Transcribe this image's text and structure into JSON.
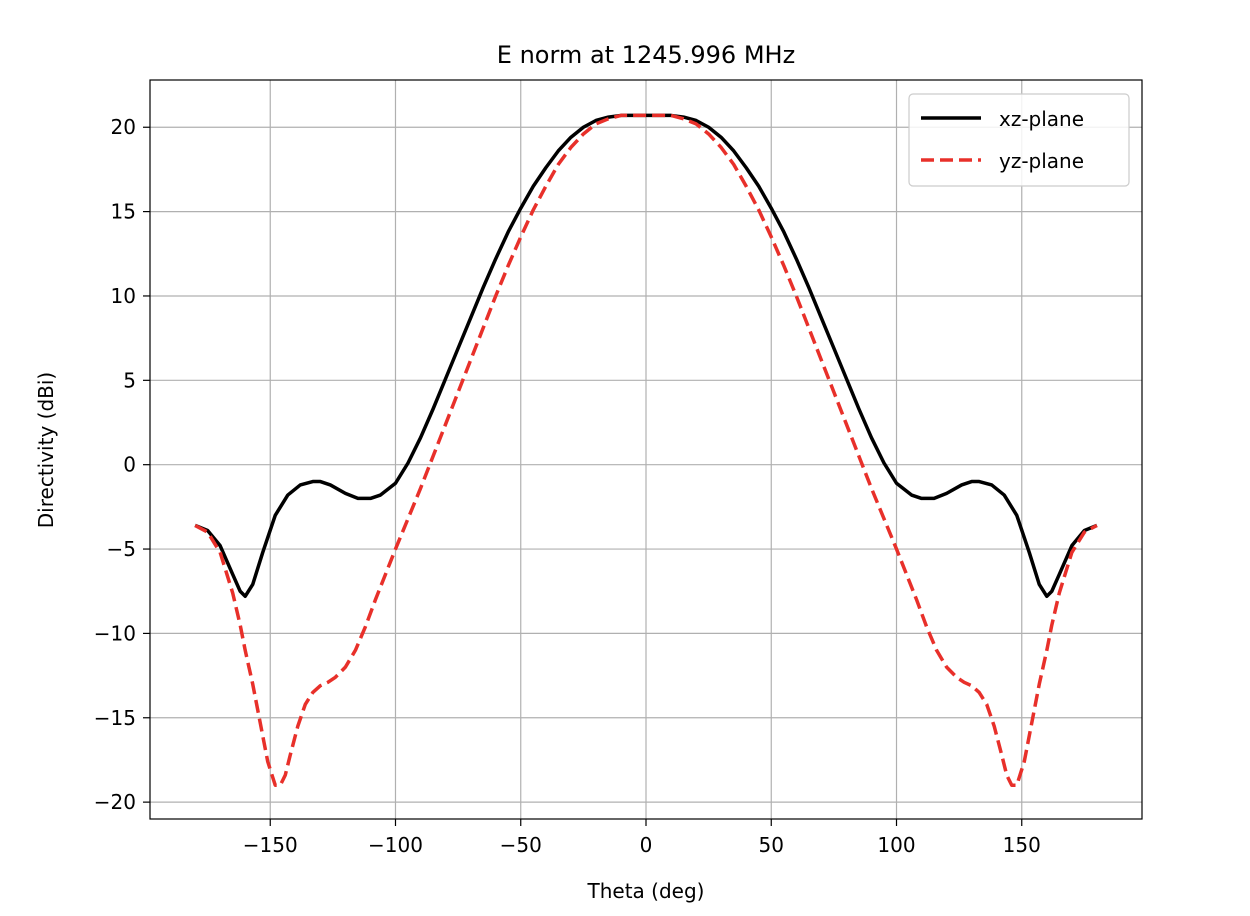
{
  "chart_data": {
    "type": "line",
    "title": "E norm at 1245.996 MHz",
    "xlabel": "Theta (deg)",
    "ylabel": "Directivity (dBi)",
    "xlim": [
      -198,
      198
    ],
    "ylim": [
      -21,
      22.8
    ],
    "xticks": [
      -150,
      -100,
      -50,
      0,
      50,
      100,
      150
    ],
    "yticks": [
      -20,
      -15,
      -10,
      -5,
      0,
      5,
      10,
      15,
      20
    ],
    "xtick_labels": [
      "−150",
      "−100",
      "−50",
      "0",
      "50",
      "100",
      "150"
    ],
    "ytick_labels": [
      "−20",
      "−15",
      "−10",
      "−5",
      "0",
      "5",
      "10",
      "15",
      "20"
    ],
    "grid": true,
    "legend_position": "top-right",
    "series": [
      {
        "name": "xz-plane",
        "color": "#000000",
        "style": "solid",
        "x": [
          -180,
          -175,
          -170,
          -165,
          -162,
          -160,
          -157,
          -153,
          -148,
          -143,
          -138,
          -133,
          -130,
          -126,
          -120,
          -115,
          -110,
          -106,
          -100,
          -95,
          -90,
          -85,
          -80,
          -75,
          -70,
          -65,
          -60,
          -55,
          -50,
          -45,
          -40,
          -35,
          -30,
          -25,
          -20,
          -15,
          -10,
          -5,
          0,
          5,
          10,
          15,
          20,
          25,
          30,
          35,
          40,
          45,
          50,
          55,
          60,
          65,
          70,
          75,
          80,
          85,
          90,
          95,
          100,
          106,
          110,
          115,
          120,
          126,
          130,
          133,
          138,
          143,
          148,
          153,
          157,
          160,
          162,
          165,
          170,
          175,
          180
        ],
        "y": [
          -3.6,
          -3.9,
          -4.8,
          -6.5,
          -7.5,
          -7.8,
          -7.1,
          -5.2,
          -3.0,
          -1.8,
          -1.2,
          -1.0,
          -1.0,
          -1.2,
          -1.7,
          -2.0,
          -2.0,
          -1.8,
          -1.1,
          0.1,
          1.6,
          3.3,
          5.1,
          6.9,
          8.7,
          10.5,
          12.2,
          13.8,
          15.2,
          16.5,
          17.6,
          18.6,
          19.4,
          20.0,
          20.4,
          20.6,
          20.7,
          20.7,
          20.7,
          20.7,
          20.7,
          20.6,
          20.4,
          20.0,
          19.4,
          18.6,
          17.6,
          16.5,
          15.2,
          13.8,
          12.2,
          10.5,
          8.7,
          6.9,
          5.1,
          3.3,
          1.6,
          0.1,
          -1.1,
          -1.8,
          -2.0,
          -2.0,
          -1.7,
          -1.2,
          -1.0,
          -1.0,
          -1.2,
          -1.8,
          -3.0,
          -5.2,
          -7.1,
          -7.8,
          -7.5,
          -6.5,
          -4.8,
          -3.9,
          -3.6
        ]
      },
      {
        "name": "yz-plane",
        "color": "#e8302a",
        "style": "dashed",
        "x": [
          -180,
          -175,
          -170,
          -165,
          -162,
          -160,
          -157,
          -154,
          -151,
          -148,
          -146,
          -144,
          -142,
          -139,
          -136,
          -133,
          -130,
          -127,
          -124,
          -120,
          -116,
          -112,
          -108,
          -104,
          -100,
          -95,
          -90,
          -85,
          -80,
          -75,
          -70,
          -65,
          -60,
          -55,
          -50,
          -45,
          -40,
          -35,
          -30,
          -25,
          -20,
          -15,
          -10,
          -5,
          0,
          5,
          10,
          15,
          20,
          25,
          30,
          35,
          40,
          45,
          50,
          55,
          60,
          65,
          70,
          75,
          80,
          85,
          90,
          95,
          100,
          104,
          108,
          112,
          116,
          120,
          124,
          127,
          130,
          133,
          136,
          139,
          142,
          144,
          146,
          148,
          151,
          154,
          157,
          160,
          162,
          165,
          170,
          175,
          180
        ],
        "y": [
          -3.6,
          -4.0,
          -5.2,
          -7.6,
          -9.5,
          -11.0,
          -13.0,
          -15.3,
          -17.6,
          -19.0,
          -19.0,
          -18.4,
          -17.2,
          -15.5,
          -14.2,
          -13.5,
          -13.1,
          -12.9,
          -12.6,
          -12.0,
          -11.0,
          -9.6,
          -8.0,
          -6.5,
          -5.0,
          -3.2,
          -1.4,
          0.5,
          2.4,
          4.3,
          6.2,
          8.1,
          10.0,
          11.8,
          13.5,
          15.1,
          16.5,
          17.8,
          18.8,
          19.6,
          20.2,
          20.5,
          20.7,
          20.7,
          20.7,
          20.7,
          20.7,
          20.5,
          20.2,
          19.6,
          18.8,
          17.8,
          16.5,
          15.1,
          13.5,
          11.8,
          10.0,
          8.1,
          6.2,
          4.3,
          2.4,
          0.5,
          -1.4,
          -3.2,
          -5.0,
          -6.5,
          -8.0,
          -9.6,
          -11.0,
          -12.0,
          -12.6,
          -12.9,
          -13.1,
          -13.5,
          -14.2,
          -15.5,
          -17.2,
          -18.4,
          -19.0,
          -19.0,
          -17.6,
          -15.3,
          -13.0,
          -11.0,
          -9.5,
          -7.6,
          -5.2,
          -4.0,
          -3.6
        ]
      }
    ]
  }
}
